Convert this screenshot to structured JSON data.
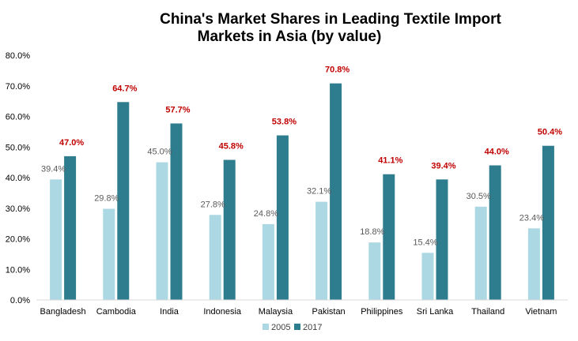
{
  "chart_data": {
    "type": "bar",
    "title_line1": "China's Market Shares in Leading Textile Import",
    "title_line2": "Markets in Asia (by value)",
    "categories": [
      "Bangladesh",
      "Cambodia",
      "India",
      "Indonesia",
      "Malaysia",
      "Pakistan",
      "Philippines",
      "Sri Lanka",
      "Thailand",
      "Vietnam"
    ],
    "series": [
      {
        "name": "2005",
        "color": "#abd8e2",
        "values": [
          39.4,
          29.8,
          45.0,
          27.8,
          24.8,
          32.1,
          18.8,
          15.4,
          30.5,
          23.4
        ],
        "labels": [
          "39.4%",
          "29.8%",
          "45.0%",
          "27.8%",
          "24.8%",
          "32.1%",
          "18.8%",
          "15.4%",
          "30.5%",
          "23.4%"
        ]
      },
      {
        "name": "2017",
        "color": "#2e7d8f",
        "values": [
          47.0,
          64.7,
          57.7,
          45.8,
          53.8,
          70.8,
          41.1,
          39.4,
          44.0,
          50.4
        ],
        "labels": [
          "47.0%",
          "64.7%",
          "57.7%",
          "45.8%",
          "53.8%",
          "70.8%",
          "41.1%",
          "39.4%",
          "44.0%",
          "50.4%"
        ]
      }
    ],
    "y_ticks": [
      0,
      10,
      20,
      30,
      40,
      50,
      60,
      70,
      80
    ],
    "y_tick_labels": [
      "0.0%",
      "10.0%",
      "20.0%",
      "30.0%",
      "40.0%",
      "50.0%",
      "60.0%",
      "70.0%",
      "80.0%"
    ],
    "ylim": [
      0,
      80
    ],
    "xlabel": "",
    "ylabel": "",
    "grid": false,
    "legend_position": "bottom-center",
    "label_color_2017": "#c00000",
    "label_color_2005": "#595959"
  }
}
